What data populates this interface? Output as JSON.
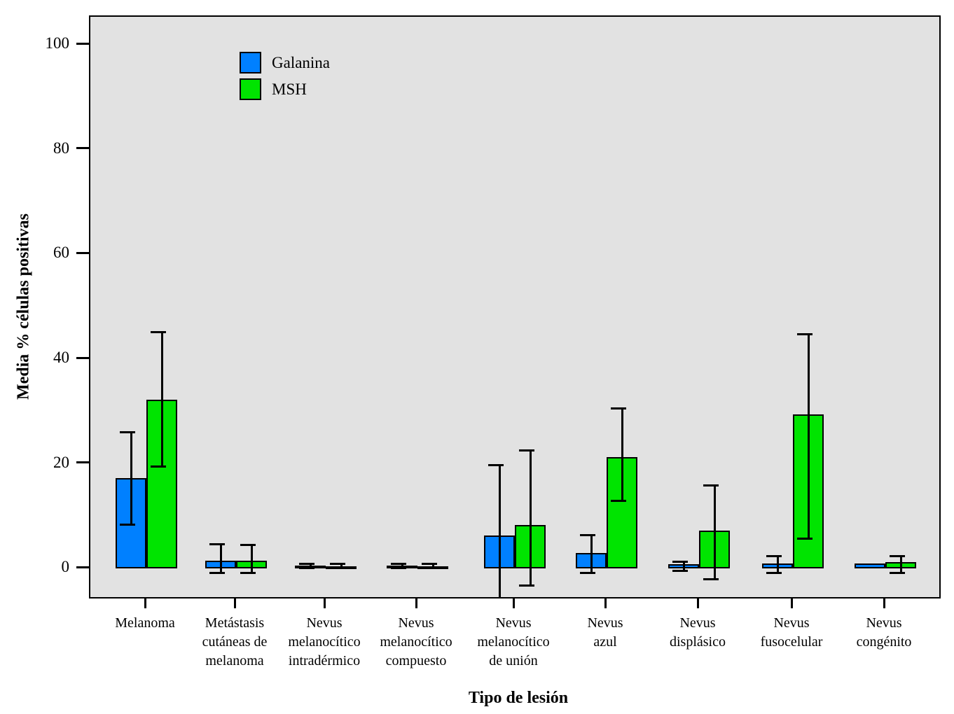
{
  "chart_data": {
    "type": "bar",
    "title": "",
    "xlabel": "Tipo de lesión",
    "ylabel": "Media % células positivas",
    "categories": [
      "Melanoma",
      "Metástasis\ncutáneas de\nmelanoma",
      "Nevus\nmelanocítico\nintradérmico",
      "Nevus\nmelanocítico\ncompuesto",
      "Nevus\nmelanocítico\nde unión",
      "Nevus\nazul",
      "Nevus\ndisplásico",
      "Nevus\nfusocelular",
      "Nevus\ncongénito"
    ],
    "series": [
      {
        "name": "Galanina",
        "color": "#0080FF",
        "values": [
          17.3,
          1.5,
          0.5,
          0.5,
          6.3,
          2.9,
          0.8,
          1.0,
          0.9
        ],
        "error_high": [
          26.0,
          4.6,
          0.9,
          0.9,
          19.7,
          6.4,
          1.3,
          2.4,
          null
        ],
        "error_low": [
          8.4,
          -0.9,
          0.1,
          0.1,
          -7.5,
          -0.9,
          -0.5,
          -0.9,
          null
        ]
      },
      {
        "name": "MSH",
        "color": "#00E400",
        "values": [
          32.2,
          1.5,
          0.4,
          0.4,
          8.3,
          21.3,
          7.2,
          29.5,
          1.2
        ],
        "error_high": [
          45.2,
          4.5,
          0.9,
          0.9,
          22.5,
          30.6,
          15.8,
          44.8,
          2.4
        ],
        "error_low": [
          19.5,
          -0.9,
          0.1,
          0.1,
          -3.2,
          12.9,
          -2.0,
          5.7,
          -0.8
        ]
      }
    ],
    "y_ticks": [
      0,
      20,
      40,
      60,
      80,
      100
    ],
    "ylim": [
      -6.0,
      105.4
    ],
    "grid": false,
    "legend_position": "top-left-inside",
    "plot_bg": "#E2E2E2"
  }
}
